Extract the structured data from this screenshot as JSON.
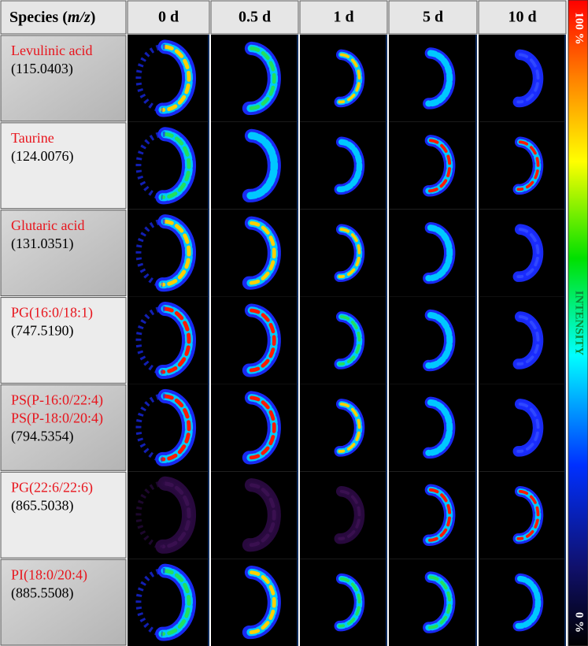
{
  "header": {
    "species": [
      "Species (",
      "m/z",
      ")"
    ],
    "days": [
      "0 d",
      "0.5 d",
      "1 d",
      "5 d",
      "10 d"
    ]
  },
  "rows": [
    {
      "names": [
        "Levulinic acid"
      ],
      "mz": "(115.0403)"
    },
    {
      "names": [
        "Taurine"
      ],
      "mz": "(124.0076)"
    },
    {
      "names": [
        "Glutaric acid"
      ],
      "mz": "(131.0351)"
    },
    {
      "names": [
        "PG(16:0/18:1)"
      ],
      "mz": "(747.5190)"
    },
    {
      "names": [
        "PS(P-16:0/22:4)",
        "PS(P-18:0/20:4)"
      ],
      "mz": "(794.5354)"
    },
    {
      "names": [
        "PG(22:6/22:6)"
      ],
      "mz": "(865.5038)"
    },
    {
      "names": [
        "PI(18:0/20:4)"
      ],
      "mz": "(885.5508)"
    }
  ],
  "colorbar": {
    "top": "100 %",
    "middle": "INTENSITY",
    "bottom": "0 %"
  }
}
